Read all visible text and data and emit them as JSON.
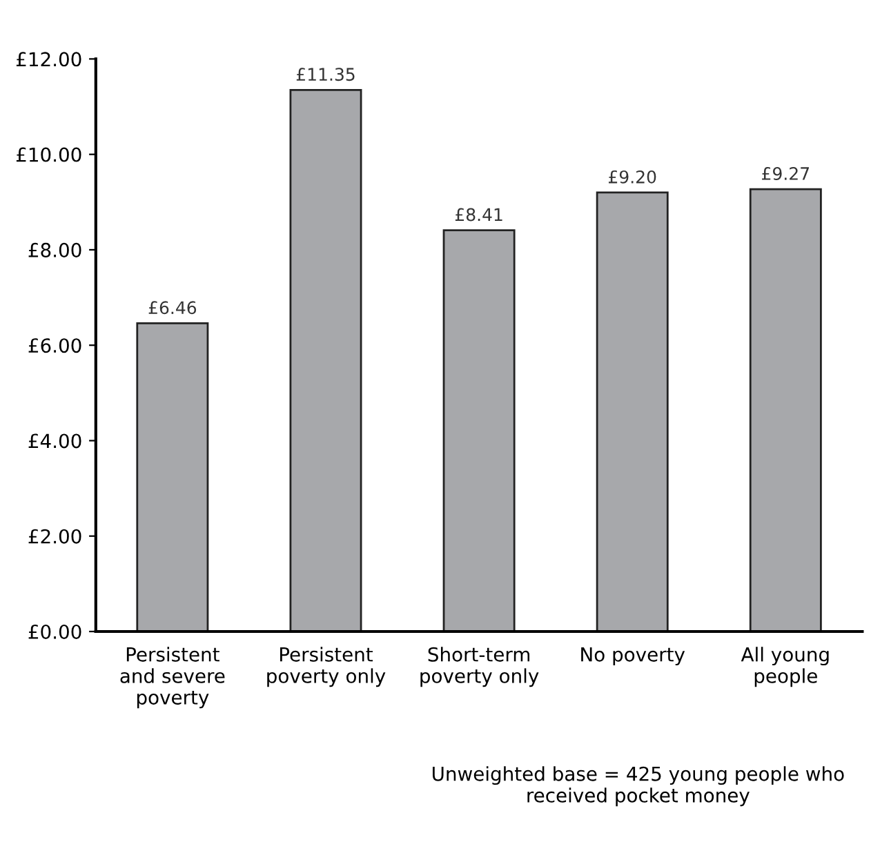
{
  "chart_data": {
    "type": "bar",
    "categories": [
      "Persistent\nand severe\npoverty",
      "Persistent\npoverty only",
      "Short-term\npoverty only",
      "No poverty",
      "All young\npeople"
    ],
    "values": [
      6.46,
      11.35,
      8.41,
      9.2,
      9.27
    ],
    "value_labels": [
      "£6.46",
      "£11.35",
      "£8.41",
      "£9.20",
      "£9.27"
    ],
    "color": "#a7a8ab",
    "ylim": [
      0,
      12
    ],
    "yticks": [
      {
        "value": 0,
        "label": "£0.00"
      },
      {
        "value": 2,
        "label": "£2.00"
      },
      {
        "value": 4,
        "label": "£4.00"
      },
      {
        "value": 6,
        "label": "£6.00"
      },
      {
        "value": 8,
        "label": "£8.00"
      },
      {
        "value": 10,
        "label": "£10.00"
      },
      {
        "value": 12,
        "label": "£12.00"
      }
    ],
    "grid": false,
    "annotations": [
      "Unweighted base = 425 young people who\nreceived pocket money"
    ]
  }
}
